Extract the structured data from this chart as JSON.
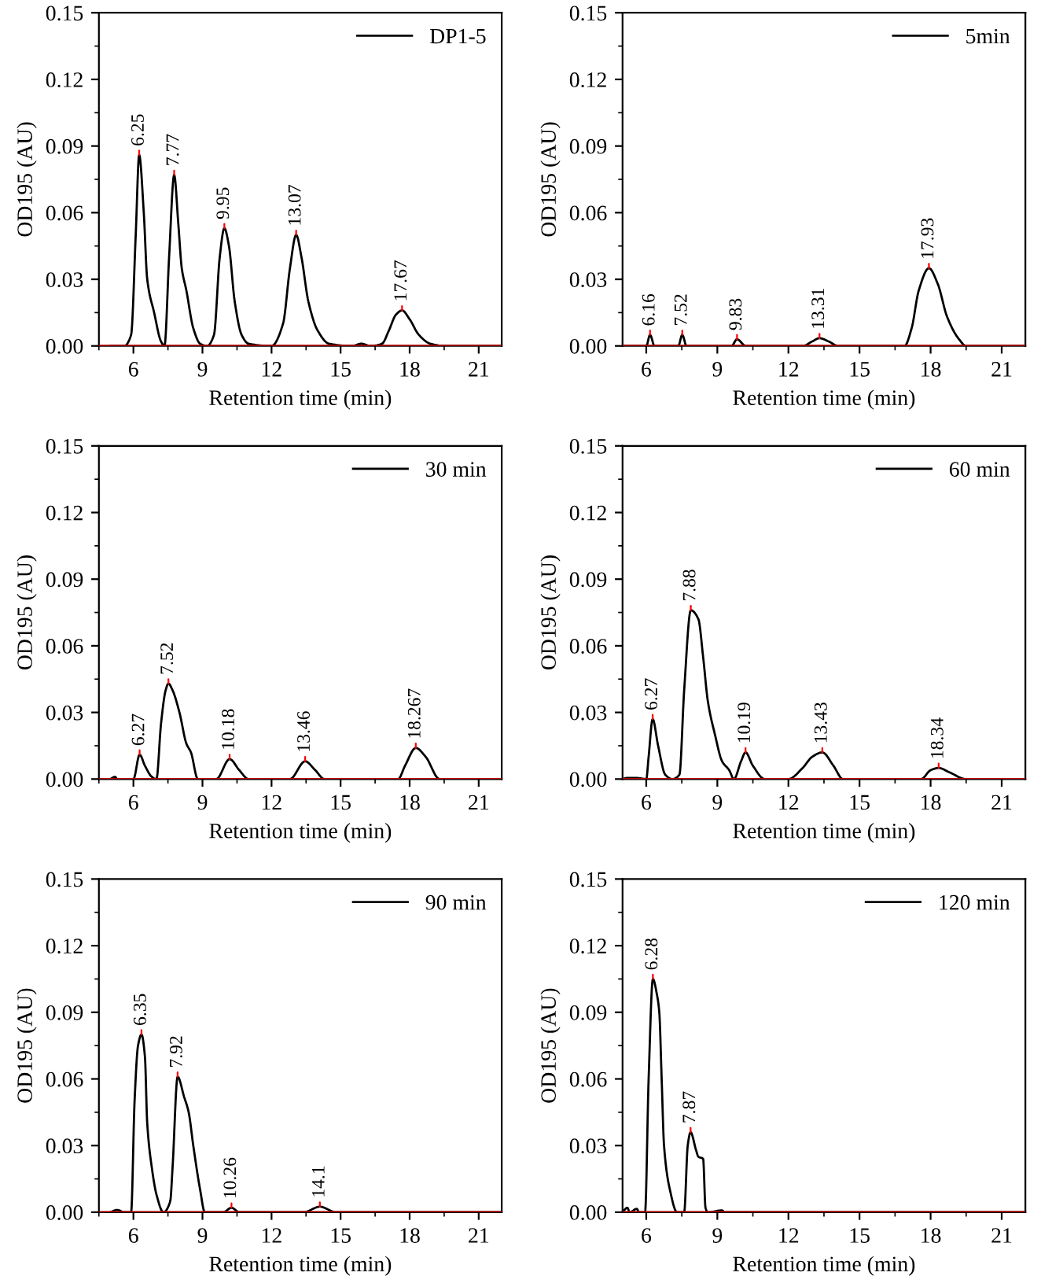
{
  "chart_data": [
    {
      "type": "line",
      "xlabel": "Retention time (min)",
      "ylabel": "OD195 (AU)",
      "xlim": [
        4.5,
        22
      ],
      "xticks": [
        6,
        9,
        12,
        15,
        18,
        21
      ],
      "ylim": [
        0,
        0.15
      ],
      "yticks": [
        {
          "value": 0,
          "label": "0.00"
        },
        {
          "value": 0.03,
          "label": "0.03"
        },
        {
          "value": 0.06,
          "label": "0.06"
        },
        {
          "value": 0.09,
          "label": "0.09"
        },
        {
          "value": 0.12,
          "label": "0.12"
        },
        {
          "value": 0.15,
          "label": "0.15"
        }
      ],
      "legend": "top right",
      "grid": false,
      "ref_lines": [
        {
          "axis": "y",
          "value": 0,
          "color": "#c00000"
        }
      ],
      "annotations": [
        {
          "text": "6.25",
          "x": 6.25,
          "y": 0.086
        },
        {
          "text": "7.77",
          "x": 7.77,
          "y": 0.077
        },
        {
          "text": "9.95",
          "x": 9.95,
          "y": 0.053
        },
        {
          "text": "13.07",
          "x": 13.07,
          "y": 0.05
        },
        {
          "text": "17.67",
          "x": 17.67,
          "y": 0.016
        }
      ],
      "series": [
        {
          "name": "DP1-5",
          "color": "#000000",
          "x": [
            5.0,
            5.6,
            5.9,
            6.1,
            6.25,
            6.45,
            6.6,
            6.9,
            7.2,
            7.35,
            7.55,
            7.77,
            7.95,
            8.1,
            8.3,
            8.6,
            8.9,
            9.2,
            9.5,
            9.75,
            9.95,
            10.15,
            10.4,
            10.7,
            11.0,
            12.0,
            12.5,
            12.8,
            13.07,
            13.3,
            13.6,
            14.0,
            14.5,
            15.5,
            15.9,
            16.3,
            16.8,
            17.1,
            17.4,
            17.67,
            18.0,
            18.4,
            18.9,
            19.5,
            22.0
          ],
          "values": [
            0,
            0,
            0.005,
            0.05,
            0.086,
            0.06,
            0.03,
            0.015,
            0.002,
            0,
            0.04,
            0.077,
            0.055,
            0.035,
            0.025,
            0.008,
            0.001,
            0,
            0.005,
            0.04,
            0.053,
            0.045,
            0.02,
            0.005,
            0.001,
            0,
            0.01,
            0.035,
            0.05,
            0.04,
            0.02,
            0.007,
            0.001,
            0,
            0.001,
            0,
            0.001,
            0.007,
            0.014,
            0.016,
            0.012,
            0.005,
            0.001,
            0,
            0
          ]
        }
      ]
    },
    {
      "type": "line",
      "xlabel": "Retention time (min)",
      "ylabel": "OD195 (AU)",
      "xlim": [
        5,
        22
      ],
      "xticks": [
        6,
        9,
        12,
        15,
        18,
        21
      ],
      "ylim": [
        0,
        0.15
      ],
      "yticks": [
        {
          "value": 0,
          "label": "0.00"
        },
        {
          "value": 0.03,
          "label": "0.03"
        },
        {
          "value": 0.06,
          "label": "0.06"
        },
        {
          "value": 0.09,
          "label": "0.09"
        },
        {
          "value": 0.12,
          "label": "0.12"
        },
        {
          "value": 0.15,
          "label": "0.15"
        }
      ],
      "legend": "top right",
      "grid": false,
      "ref_lines": [
        {
          "axis": "y",
          "value": 0,
          "color": "#c00000"
        }
      ],
      "annotations": [
        {
          "text": "6.16",
          "x": 6.16,
          "y": 0.005
        },
        {
          "text": "7.52",
          "x": 7.52,
          "y": 0.005
        },
        {
          "text": "9.83",
          "x": 9.83,
          "y": 0.003
        },
        {
          "text": "13.31",
          "x": 13.31,
          "y": 0.0035
        },
        {
          "text": "17.93",
          "x": 17.93,
          "y": 0.035
        }
      ],
      "series": [
        {
          "name": "5min",
          "color": "#000000",
          "x": [
            5.0,
            6.0,
            6.16,
            6.35,
            7.35,
            7.52,
            7.7,
            9.6,
            9.83,
            10.2,
            12.6,
            13.0,
            13.31,
            13.7,
            14.1,
            16.9,
            17.2,
            17.5,
            17.93,
            18.3,
            18.7,
            19.2,
            19.5,
            22.0
          ],
          "values": [
            0,
            0,
            0.005,
            0,
            0,
            0.005,
            0,
            0,
            0.003,
            0,
            0,
            0.002,
            0.0035,
            0.002,
            0,
            0,
            0.008,
            0.025,
            0.035,
            0.028,
            0.013,
            0.003,
            0,
            0
          ]
        }
      ]
    },
    {
      "type": "line",
      "xlabel": "Retention time (min)",
      "ylabel": "OD195 (AU)",
      "xlim": [
        4.5,
        22
      ],
      "xticks": [
        6,
        9,
        12,
        15,
        18,
        21
      ],
      "ylim": [
        0,
        0.15
      ],
      "yticks": [
        {
          "value": 0,
          "label": "0.00"
        },
        {
          "value": 0.03,
          "label": "0.03"
        },
        {
          "value": 0.06,
          "label": "0.06"
        },
        {
          "value": 0.09,
          "label": "0.09"
        },
        {
          "value": 0.12,
          "label": "0.12"
        },
        {
          "value": 0.15,
          "label": "0.15"
        }
      ],
      "legend": "top right",
      "grid": false,
      "ref_lines": [
        {
          "axis": "y",
          "value": 0,
          "color": "#c00000"
        }
      ],
      "annotations": [
        {
          "text": "6.27",
          "x": 6.27,
          "y": 0.011
        },
        {
          "text": "7.52",
          "x": 7.52,
          "y": 0.043
        },
        {
          "text": "10.18",
          "x": 10.18,
          "y": 0.009
        },
        {
          "text": "13.46",
          "x": 13.46,
          "y": 0.008
        },
        {
          "text": "18.267",
          "x": 18.267,
          "y": 0.014
        }
      ],
      "series": [
        {
          "name": "30 min",
          "color": "#000000",
          "x": [
            5.0,
            5.2,
            5.3,
            6.0,
            6.27,
            6.5,
            6.8,
            7.0,
            7.2,
            7.4,
            7.52,
            7.7,
            8.0,
            8.3,
            8.5,
            8.8,
            9.6,
            10.18,
            10.6,
            11.0,
            12.8,
            13.46,
            13.9,
            14.3,
            17.5,
            17.8,
            18.267,
            18.7,
            19.3,
            22.0
          ],
          "values": [
            0,
            0.001,
            0,
            0,
            0.011,
            0.006,
            0.001,
            0,
            0.025,
            0.04,
            0.043,
            0.04,
            0.03,
            0.016,
            0.012,
            0,
            0,
            0.009,
            0.004,
            0,
            0,
            0.008,
            0.004,
            0,
            0,
            0.006,
            0.014,
            0.01,
            0,
            0
          ]
        }
      ]
    },
    {
      "type": "line",
      "xlabel": "Retention time (min)",
      "ylabel": "OD195 (AU)",
      "xlim": [
        5,
        22
      ],
      "xticks": [
        6,
        9,
        12,
        15,
        18,
        21
      ],
      "ylim": [
        0,
        0.15
      ],
      "yticks": [
        {
          "value": 0,
          "label": "0.00"
        },
        {
          "value": 0.03,
          "label": "0.03"
        },
        {
          "value": 0.06,
          "label": "0.06"
        },
        {
          "value": 0.09,
          "label": "0.09"
        },
        {
          "value": 0.12,
          "label": "0.12"
        },
        {
          "value": 0.15,
          "label": "0.15"
        }
      ],
      "legend": "top right",
      "grid": false,
      "ref_lines": [
        {
          "axis": "y",
          "value": 0,
          "color": "#c00000"
        }
      ],
      "annotations": [
        {
          "text": "6.27",
          "x": 6.27,
          "y": 0.027
        },
        {
          "text": "7.88",
          "x": 7.88,
          "y": 0.076
        },
        {
          "text": "10.19",
          "x": 10.19,
          "y": 0.012
        },
        {
          "text": "13.43",
          "x": 13.43,
          "y": 0.012
        },
        {
          "text": "18.34",
          "x": 18.34,
          "y": 0.005
        }
      ],
      "series": [
        {
          "name": "60 min",
          "color": "#000000",
          "x": [
            5.0,
            5.2,
            5.6,
            6.0,
            6.1,
            6.27,
            6.5,
            6.8,
            7.1,
            7.4,
            7.6,
            7.88,
            8.2,
            8.4,
            8.6,
            8.9,
            9.2,
            9.5,
            9.7,
            10.0,
            10.19,
            10.5,
            11.0,
            12.0,
            12.6,
            13.0,
            13.43,
            13.9,
            14.3,
            17.6,
            18.0,
            18.34,
            18.8,
            19.5,
            22.0
          ],
          "values": [
            0,
            0.0005,
            0.0005,
            0,
            0.01,
            0.027,
            0.015,
            0.002,
            0,
            0.002,
            0.04,
            0.076,
            0.072,
            0.055,
            0.035,
            0.02,
            0.008,
            0.004,
            0,
            0.008,
            0.012,
            0.006,
            0,
            0,
            0.005,
            0.01,
            0.012,
            0.006,
            0,
            0,
            0.004,
            0.005,
            0.003,
            0,
            0
          ]
        }
      ]
    },
    {
      "type": "line",
      "xlabel": "Retention time (min)",
      "ylabel": "OD195 (AU)",
      "xlim": [
        4.5,
        22
      ],
      "xticks": [
        6,
        9,
        12,
        15,
        18,
        21
      ],
      "ylim": [
        0,
        0.15
      ],
      "yticks": [
        {
          "value": 0,
          "label": "0.00"
        },
        {
          "value": 0.03,
          "label": "0.03"
        },
        {
          "value": 0.06,
          "label": "0.06"
        },
        {
          "value": 0.09,
          "label": "0.09"
        },
        {
          "value": 0.12,
          "label": "0.12"
        },
        {
          "value": 0.15,
          "label": "0.15"
        }
      ],
      "legend": "top right",
      "grid": false,
      "ref_lines": [
        {
          "axis": "y",
          "value": 0,
          "color": "#c00000"
        }
      ],
      "annotations": [
        {
          "text": "6.35",
          "x": 6.35,
          "y": 0.08
        },
        {
          "text": "7.92",
          "x": 7.92,
          "y": 0.061
        },
        {
          "text": "10.26",
          "x": 10.26,
          "y": 0.002
        },
        {
          "text": "14.1",
          "x": 14.1,
          "y": 0.0025
        }
      ],
      "series": [
        {
          "name": "90 min",
          "color": "#000000",
          "x": [
            5.0,
            5.3,
            5.6,
            5.9,
            6.05,
            6.2,
            6.35,
            6.5,
            6.6,
            6.8,
            7.0,
            7.3,
            7.6,
            7.7,
            7.92,
            8.2,
            8.4,
            8.6,
            8.9,
            9.1,
            9.9,
            10.26,
            10.6,
            13.4,
            14.1,
            14.8,
            22.0
          ],
          "values": [
            0,
            0.001,
            0,
            0,
            0.05,
            0.075,
            0.08,
            0.07,
            0.04,
            0.02,
            0.008,
            0,
            0.005,
            0.02,
            0.061,
            0.052,
            0.045,
            0.03,
            0.01,
            0,
            0,
            0.002,
            0,
            0,
            0.0025,
            0,
            0
          ]
        }
      ]
    },
    {
      "type": "line",
      "xlabel": "Retention time (min)",
      "ylabel": "OD195 (AU)",
      "xlim": [
        5,
        22
      ],
      "xticks": [
        6,
        9,
        12,
        15,
        18,
        21
      ],
      "ylim": [
        0,
        0.15
      ],
      "yticks": [
        {
          "value": 0,
          "label": "0.00"
        },
        {
          "value": 0.03,
          "label": "0.03"
        },
        {
          "value": 0.06,
          "label": "0.06"
        },
        {
          "value": 0.09,
          "label": "0.09"
        },
        {
          "value": 0.12,
          "label": "0.12"
        },
        {
          "value": 0.15,
          "label": "0.15"
        }
      ],
      "legend": "top right",
      "grid": false,
      "ref_lines": [
        {
          "axis": "y",
          "value": 0,
          "color": "#c00000"
        }
      ],
      "annotations": [
        {
          "text": "6.28",
          "x": 6.28,
          "y": 0.105
        },
        {
          "text": "7.87",
          "x": 7.87,
          "y": 0.036
        }
      ],
      "series": [
        {
          "name": "120 min",
          "color": "#000000",
          "x": [
            5.0,
            5.2,
            5.3,
            5.6,
            5.7,
            5.95,
            6.1,
            6.28,
            6.45,
            6.55,
            6.65,
            6.75,
            7.0,
            7.3,
            7.6,
            7.75,
            7.87,
            8.1,
            8.2,
            8.4,
            8.5,
            8.6,
            9.2,
            9.3,
            22.0
          ],
          "values": [
            0,
            0.002,
            0,
            0.0015,
            0,
            0,
            0.06,
            0.105,
            0.098,
            0.09,
            0.06,
            0.03,
            0.01,
            0,
            0,
            0.03,
            0.036,
            0.028,
            0.025,
            0.024,
            0.002,
            0,
            0.0008,
            0,
            0
          ]
        }
      ]
    }
  ]
}
